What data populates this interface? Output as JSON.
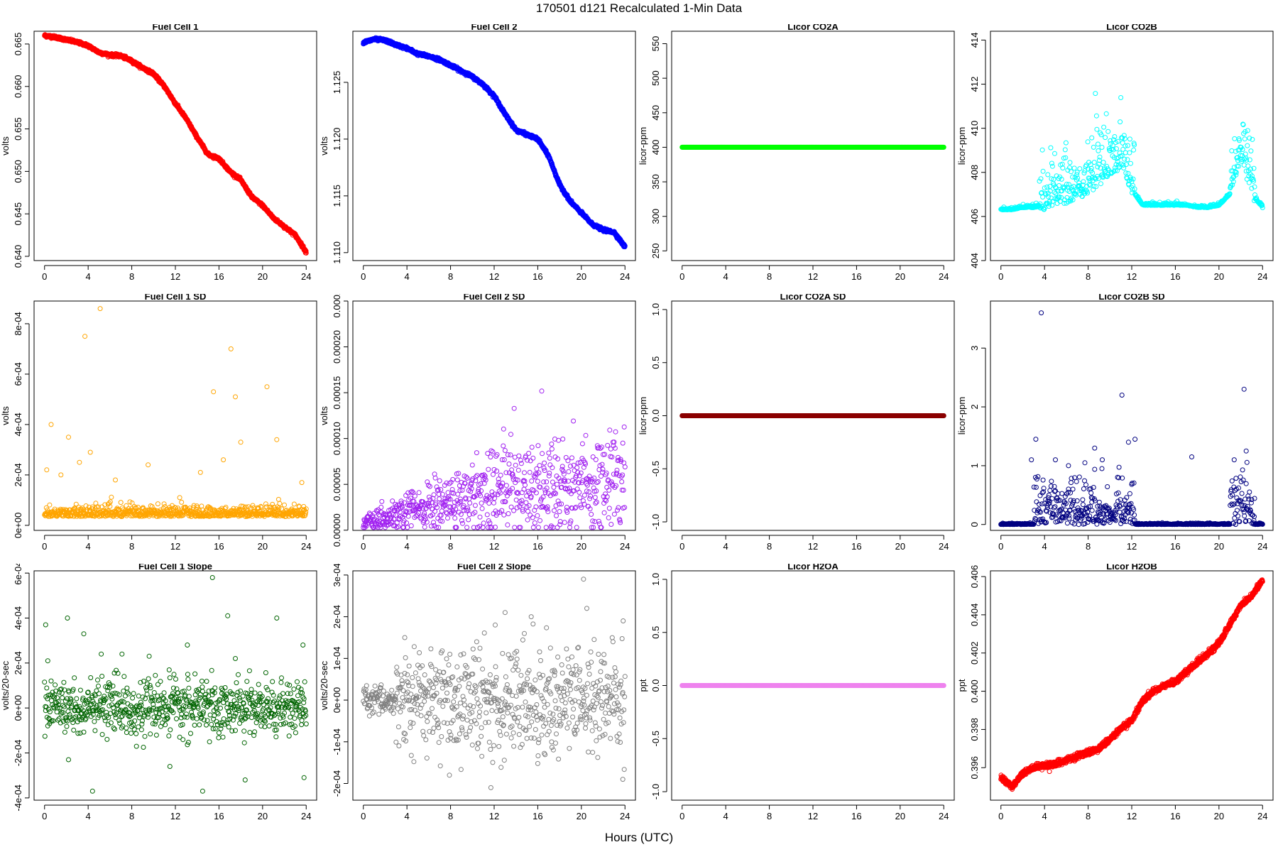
{
  "title": "170501   d121   Recalculated 1-Min Data",
  "xlabel": "Hours (UTC)",
  "chart_data": [
    {
      "type": "scatter",
      "title": "Fuel Cell 1",
      "ylabel": "volts",
      "color": "#ff0000",
      "xlim": [
        -0.96,
        24.96
      ],
      "ylim": [
        0.6395,
        0.6665
      ],
      "x_ticks": [
        0,
        4,
        8,
        12,
        16,
        20,
        24
      ],
      "y_ticks": [
        0.64,
        0.645,
        0.65,
        0.655,
        0.66,
        0.665
      ],
      "y_tick_labels": [
        "0.640",
        "0.645",
        "0.650",
        "0.655",
        "0.660",
        "0.665"
      ],
      "x": [
        0,
        1,
        2,
        3,
        4,
        5,
        6,
        7,
        8,
        9,
        10,
        11,
        12,
        13,
        14,
        15,
        16,
        17,
        18,
        19,
        20,
        21,
        22,
        23,
        24
      ],
      "y": [
        0.666,
        0.6658,
        0.6655,
        0.6652,
        0.6648,
        0.664,
        0.6637,
        0.6636,
        0.663,
        0.6622,
        0.6615,
        0.66,
        0.658,
        0.6562,
        0.654,
        0.652,
        0.6515,
        0.65,
        0.649,
        0.647,
        0.646,
        0.6445,
        0.6435,
        0.6425,
        0.6405
      ]
    },
    {
      "type": "scatter",
      "title": "Fuel Cell 2",
      "ylabel": "volts",
      "color": "#0000ff",
      "xlim": [
        -0.96,
        24.96
      ],
      "ylim": [
        1.1093,
        1.1295
      ],
      "x_ticks": [
        0,
        4,
        8,
        12,
        16,
        20,
        24
      ],
      "y_ticks": [
        1.11,
        1.115,
        1.12,
        1.125
      ],
      "y_tick_labels": [
        "1.110",
        "1.115",
        "1.120",
        "1.125"
      ],
      "x": [
        0,
        1,
        2,
        3,
        4,
        5,
        6,
        7,
        8,
        9,
        10,
        11,
        12,
        13,
        14,
        15,
        16,
        17,
        18,
        19,
        20,
        21,
        22,
        23,
        24
      ],
      "y": [
        1.1285,
        1.1288,
        1.1287,
        1.1283,
        1.128,
        1.1275,
        1.1273,
        1.127,
        1.1265,
        1.126,
        1.1255,
        1.1248,
        1.1238,
        1.1222,
        1.1208,
        1.1204,
        1.12,
        1.1185,
        1.116,
        1.1145,
        1.1135,
        1.1125,
        1.112,
        1.1118,
        1.1105
      ]
    },
    {
      "type": "scatter",
      "title": "Licor CO2A",
      "ylabel": "licor-ppm",
      "color": "#00ff00",
      "xlim": [
        -0.96,
        24.96
      ],
      "ylim": [
        236,
        568
      ],
      "x_ticks": [
        0,
        4,
        8,
        12,
        16,
        20,
        24
      ],
      "y_ticks": [
        250,
        300,
        350,
        400,
        450,
        500,
        550
      ],
      "y_tick_labels": [
        "250",
        "300",
        "350",
        "400",
        "450",
        "500",
        "550"
      ],
      "x": [
        0,
        24
      ],
      "y": [
        400,
        400
      ]
    },
    {
      "type": "scatter",
      "title": "Licor CO2B",
      "ylabel": "licor-ppm",
      "color": "#00ffff",
      "xlim": [
        -0.96,
        24.96
      ],
      "ylim": [
        404,
        414.4
      ],
      "x_ticks": [
        0,
        4,
        8,
        12,
        16,
        20,
        24
      ],
      "y_ticks": [
        404,
        406,
        408,
        410,
        412,
        414
      ],
      "y_tick_labels": [
        "404",
        "406",
        "408",
        "410",
        "412",
        "414"
      ],
      "x": [
        0,
        1,
        2,
        3,
        4,
        5,
        6,
        7,
        8,
        9,
        10,
        11,
        12,
        13,
        14,
        15,
        16,
        17,
        18,
        19,
        20,
        21,
        22,
        23,
        24
      ],
      "y": [
        406.3,
        406.3,
        406.4,
        406.4,
        406.5,
        406.6,
        406.8,
        407.0,
        407.2,
        407.6,
        407.8,
        408.5,
        407.2,
        406.5,
        406.5,
        406.5,
        406.5,
        406.5,
        406.4,
        406.4,
        406.5,
        407.0,
        408.8,
        407.0,
        406.4
      ]
    },
    {
      "type": "scatter",
      "title": "Fuel Cell 1 SD",
      "ylabel": "volts",
      "color": "#ffa500",
      "xlim": [
        -0.96,
        24.96
      ],
      "ylim": [
        -2e-05,
        0.00089
      ],
      "x_ticks": [
        0,
        4,
        8,
        12,
        16,
        20,
        24
      ],
      "y_ticks": [
        0,
        0.0002,
        0.0004,
        0.0006,
        0.0008
      ],
      "y_tick_labels": [
        "0e+00",
        "2e-04",
        "4e-04",
        "6e-04",
        "8e-04"
      ],
      "x": [
        0.2,
        0.6,
        1.5,
        2.2,
        3.2,
        3.7,
        4.2,
        5.1,
        6.5,
        9.5,
        12.4,
        14.3,
        15.5,
        16.4,
        17.1,
        17.5,
        18.0,
        20.4,
        21.3,
        23.6
      ],
      "y": [
        0.00022,
        0.0004,
        0.0002,
        0.00035,
        0.00025,
        0.00075,
        0.00029,
        0.00086,
        0.00018,
        0.00024,
        0.00011,
        0.00021,
        0.00053,
        0.00026,
        0.0007,
        0.00051,
        0.00033,
        0.00055,
        0.00034,
        0.00017
      ]
    },
    {
      "type": "scatter",
      "title": "Fuel Cell 2 SD",
      "ylabel": "volts",
      "color": "#a020f0",
      "xlim": [
        -0.96,
        24.96
      ],
      "ylim": [
        -2e-07,
        0.00025
      ],
      "x_ticks": [
        0,
        4,
        8,
        12,
        16,
        20,
        24
      ],
      "y_ticks": [
        0,
        5e-05,
        0.0001,
        0.00015,
        0.0002,
        0.00025
      ],
      "y_tick_labels": [
        "0.00000",
        "0.00005",
        "0.00010",
        "0.00015",
        "0.00020",
        "0.00025"
      ],
      "x": [
        0,
        1,
        2,
        3,
        4,
        5,
        6,
        7,
        8,
        9,
        10,
        11,
        12,
        13,
        14,
        15,
        16,
        17,
        18,
        19,
        20,
        21,
        22,
        23,
        24
      ],
      "y": [
        8e-06,
        9e-06,
        1.2e-05,
        1.5e-05,
        2e-05,
        2.2e-05,
        2.5e-05,
        2.8e-05,
        3e-05,
        3.2e-05,
        3.5e-05,
        4e-05,
        4.5e-05,
        5e-05,
        4.8e-05,
        4.5e-05,
        5e-05,
        4.8e-05,
        5e-05,
        5.2e-05,
        5e-05,
        4.8e-05,
        5e-05,
        5.5e-05,
        6e-05
      ]
    },
    {
      "type": "scatter",
      "title": "Licor CO2A SD",
      "ylabel": "licor-ppm",
      "color": "#8b0000",
      "xlim": [
        -0.96,
        24.96
      ],
      "ylim": [
        -1.08,
        1.08
      ],
      "x_ticks": [
        0,
        4,
        8,
        12,
        16,
        20,
        24
      ],
      "y_ticks": [
        -1.0,
        -0.5,
        0.0,
        0.5,
        1.0
      ],
      "y_tick_labels": [
        "-1.0",
        "-0.5",
        "0.0",
        "0.5",
        "1.0"
      ],
      "x": [
        0,
        24
      ],
      "y": [
        0,
        0
      ]
    },
    {
      "type": "scatter",
      "title": "Licor CO2B SD",
      "ylabel": "licor-ppm",
      "color": "#000080",
      "xlim": [
        -0.96,
        24.96
      ],
      "ylim": [
        -0.1,
        3.8
      ],
      "x_ticks": [
        0,
        4,
        8,
        12,
        16,
        20,
        24
      ],
      "y_ticks": [
        0,
        1,
        2,
        3
      ],
      "y_tick_labels": [
        "0",
        "1",
        "2",
        "3"
      ],
      "x": [
        2.8,
        3.2,
        3.7,
        5.0,
        6.2,
        7.7,
        8.6,
        9.3,
        11.1,
        11.7,
        12.3,
        17.5,
        21.4,
        22.3,
        22.5
      ],
      "y": [
        1.1,
        1.45,
        3.6,
        1.1,
        1.0,
        1.05,
        1.3,
        1.1,
        2.2,
        1.4,
        1.45,
        1.15,
        1.1,
        2.3,
        1.25
      ]
    },
    {
      "type": "scatter",
      "title": "Fuel Cell 1 Slope",
      "ylabel": "volts/20-sec",
      "color": "#006400",
      "xlim": [
        -0.96,
        24.96
      ],
      "ylim": [
        -0.00041,
        0.00061
      ],
      "x_ticks": [
        0,
        4,
        8,
        12,
        16,
        20,
        24
      ],
      "y_ticks": [
        -0.0004,
        -0.0002,
        0,
        0.0002,
        0.0004,
        0.0006
      ],
      "y_tick_labels": [
        "-4e-04",
        "-2e-04",
        "0e+00",
        "2e-04",
        "4e-04",
        "6e-04"
      ],
      "x": [
        0.1,
        0.3,
        2.1,
        2.2,
        3.6,
        4.4,
        5.2,
        7.1,
        9.6,
        11.5,
        13.1,
        14.5,
        15.4,
        16.8,
        17.5,
        18.4,
        21.3,
        23.7,
        23.8
      ],
      "y": [
        0.00037,
        0.00021,
        0.0004,
        -0.00023,
        0.00033,
        -0.00037,
        0.00024,
        0.00024,
        0.00023,
        -0.00026,
        0.00028,
        -0.00037,
        0.00058,
        0.00041,
        0.00022,
        -0.00032,
        0.0004,
        0.00028,
        -0.00031
      ]
    },
    {
      "type": "scatter",
      "title": "Fuel Cell 2 Slope",
      "ylabel": "volts/20-sec",
      "color": "#808080",
      "xlim": [
        -0.96,
        24.96
      ],
      "ylim": [
        -0.00024,
        0.00031
      ],
      "x_ticks": [
        0,
        4,
        8,
        12,
        16,
        20,
        24
      ],
      "y_ticks": [
        -0.0002,
        -0.0001,
        0,
        0.0001,
        0.0002,
        0.0003
      ],
      "y_tick_labels": [
        "-2e-04",
        "-1e-04",
        "0e+00",
        "1e-04",
        "2e-04",
        "3e-04"
      ],
      "x": [
        3.8,
        7.9,
        11.7,
        12.1,
        13.0,
        15.4,
        20.2,
        20.5,
        23.8
      ],
      "y": [
        0.00015,
        -0.00018,
        -0.00021,
        0.00018,
        0.00021,
        0.0002,
        0.00029,
        0.00022,
        -0.00019
      ]
    },
    {
      "type": "scatter",
      "title": "Licor H2OA",
      "ylabel": "ppt",
      "color": "#ee82ee",
      "xlim": [
        -0.96,
        24.96
      ],
      "ylim": [
        -1.08,
        1.08
      ],
      "x_ticks": [
        0,
        4,
        8,
        12,
        16,
        20,
        24
      ],
      "y_ticks": [
        -1.0,
        -0.5,
        0.0,
        0.5,
        1.0
      ],
      "y_tick_labels": [
        "-1.0",
        "-0.5",
        "0.0",
        "0.5",
        "1.0"
      ],
      "x": [
        0,
        24
      ],
      "y": [
        0,
        0
      ]
    },
    {
      "type": "scatter",
      "title": "Licor H2OB",
      "ylabel": "ppt",
      "color": "#ff0000",
      "xlim": [
        -0.96,
        24.96
      ],
      "ylim": [
        0.3943,
        0.4063
      ],
      "x_ticks": [
        0,
        4,
        8,
        12,
        16,
        20,
        24
      ],
      "y_ticks": [
        0.396,
        0.398,
        0.4,
        0.402,
        0.404,
        0.406
      ],
      "y_tick_labels": [
        "0.396",
        "0.398",
        "0.400",
        "0.402",
        "0.404",
        "0.406"
      ],
      "x": [
        0,
        1,
        2,
        3,
        4,
        5,
        6,
        7,
        8,
        9,
        10,
        11,
        12,
        13,
        14,
        15,
        16,
        17,
        18,
        19,
        20,
        21,
        22,
        23,
        24
      ],
      "y": [
        0.3955,
        0.395,
        0.3957,
        0.396,
        0.3961,
        0.3962,
        0.3964,
        0.3966,
        0.3968,
        0.397,
        0.3975,
        0.398,
        0.3985,
        0.3995,
        0.4,
        0.4003,
        0.4005,
        0.401,
        0.4015,
        0.402,
        0.4025,
        0.4035,
        0.4045,
        0.405,
        0.4058
      ]
    }
  ]
}
